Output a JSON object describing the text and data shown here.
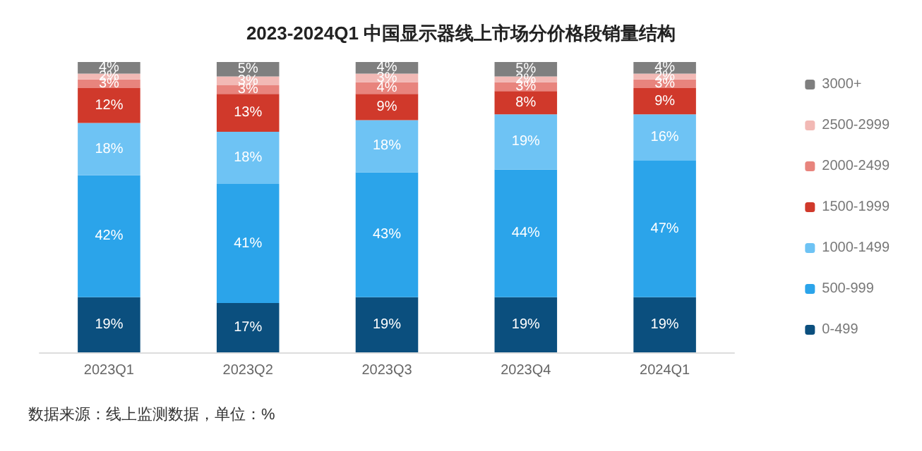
{
  "chart_data": {
    "type": "bar",
    "title": "2023-2024Q1 中国显示器线上市场分价格段销量结构",
    "categories": [
      "2023Q1",
      "2023Q2",
      "2023Q3",
      "2023Q4",
      "2024Q1"
    ],
    "stacked": true,
    "legend": "right",
    "series": [
      {
        "name": "0-499",
        "color": "#0b4f7e",
        "values": [
          19,
          17,
          19,
          19,
          19
        ],
        "value_labels": [
          "19%",
          "17%",
          "19%",
          "19%",
          "19%"
        ]
      },
      {
        "name": "500-999",
        "color": "#2ba4ea",
        "values": [
          42,
          41,
          43,
          44,
          47
        ],
        "value_labels": [
          "42%",
          "41%",
          "43%",
          "44%",
          "47%"
        ]
      },
      {
        "name": "1000-1499",
        "color": "#6ec3f4",
        "values": [
          18,
          18,
          18,
          19,
          16
        ],
        "value_labels": [
          "18%",
          "18%",
          "18%",
          "19%",
          "16%"
        ]
      },
      {
        "name": "1500-1999",
        "color": "#d0392b",
        "values": [
          12,
          13,
          9,
          8,
          9
        ],
        "value_labels": [
          "12%",
          "13%",
          "9%",
          "8%",
          "9%"
        ]
      },
      {
        "name": "2000-2499",
        "color": "#e8847d",
        "values": [
          3,
          3,
          4,
          3,
          3
        ],
        "value_labels": [
          "3%",
          "3%",
          "4%",
          "3%",
          "3%"
        ]
      },
      {
        "name": "2500-2999",
        "color": "#f2b9b5",
        "values": [
          2,
          3,
          3,
          2,
          2
        ],
        "value_labels": [
          "2%",
          "3%",
          "3%",
          "2%",
          "2%"
        ]
      },
      {
        "name": "3000+",
        "color": "#7f7f7f",
        "values": [
          4,
          5,
          4,
          5,
          4
        ],
        "value_labels": [
          "4%",
          "5%",
          "4%",
          "5%",
          "4%"
        ]
      }
    ],
    "annotations": [
      "数据来源：线上监测数据，单位：%"
    ]
  }
}
